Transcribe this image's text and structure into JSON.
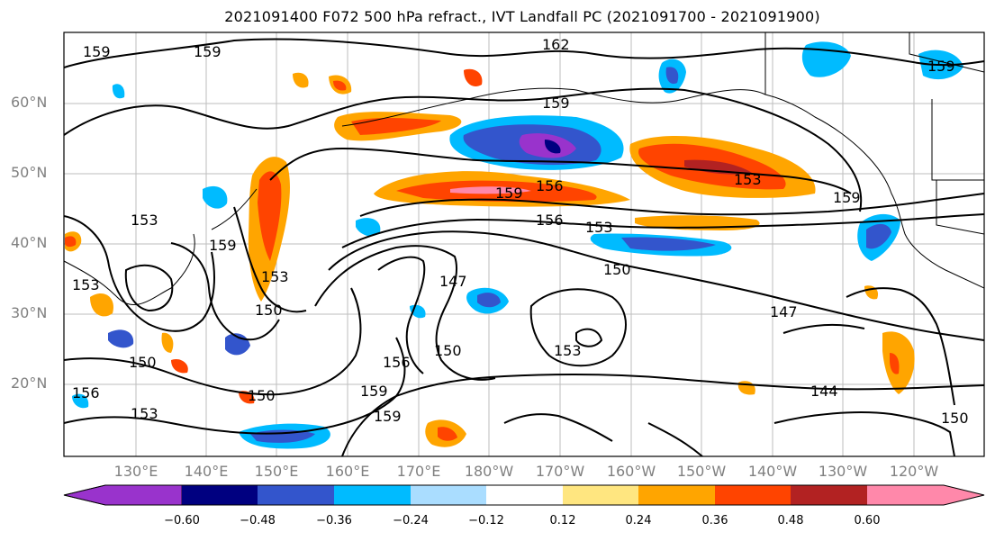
{
  "title": "2021091400 F072 500 hPa refract., IVT Landfall PC (2021091700 - 2021091900)",
  "lat_labels": [
    "60°N",
    "50°N",
    "40°N",
    "30°N",
    "20°N"
  ],
  "lon_labels": [
    "130°E",
    "140°E",
    "150°E",
    "160°E",
    "170°E",
    "180°W",
    "170°W",
    "160°W",
    "150°W",
    "140°W",
    "130°W",
    "120°W"
  ],
  "colorbar": {
    "ticks": [
      "−0.60",
      "−0.48",
      "−0.36",
      "−0.24",
      "−0.12",
      "0.12",
      "0.24",
      "0.36",
      "0.48",
      "0.60"
    ],
    "colors": [
      "#9933cc",
      "#000080",
      "#3355cc",
      "#00bbff",
      "#aaddff",
      "#ffffff",
      "#ffe680",
      "#ffa500",
      "#ff4400",
      "#b22222",
      "#ff88aa"
    ]
  },
  "contour_labels": [
    "159",
    "162",
    "159",
    "159",
    "156",
    "153",
    "153",
    "159",
    "159",
    "156",
    "153",
    "150",
    "147",
    "150",
    "147",
    "150",
    "153",
    "159",
    "159",
    "150",
    "156",
    "153",
    "150",
    "144",
    "150",
    "153",
    "159",
    "153",
    "156",
    "159"
  ]
}
